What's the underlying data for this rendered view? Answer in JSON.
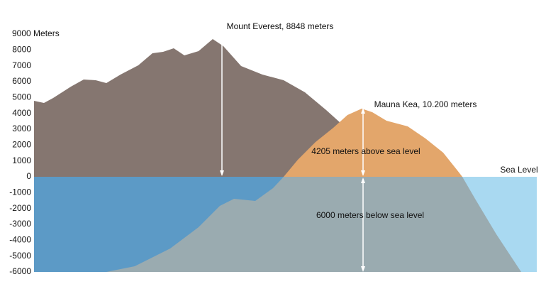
{
  "axis": {
    "labels": [
      "9000 Meters",
      "8000",
      "7000",
      "6000",
      "5000",
      "4000",
      "3000",
      "2000",
      "1000",
      "0",
      "-1000",
      "-2000",
      "-3000",
      "-4000",
      "-5000",
      "-6000"
    ]
  },
  "annotations": {
    "everest": "Mount Everest, 8848 meters",
    "mauna_kea": "Mauna Kea, 10.200 meters",
    "above": "4205 meters above sea level",
    "below": "6000 meters below sea level",
    "sea_level": "Sea Level"
  }
}
